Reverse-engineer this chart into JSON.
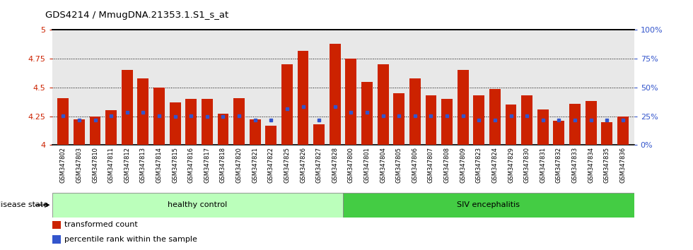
{
  "title": "GDS4214 / MmugDNA.21353.1.S1_s_at",
  "samples": [
    "GSM347802",
    "GSM347803",
    "GSM347810",
    "GSM347811",
    "GSM347812",
    "GSM347813",
    "GSM347814",
    "GSM347815",
    "GSM347816",
    "GSM347817",
    "GSM347818",
    "GSM347820",
    "GSM347821",
    "GSM347822",
    "GSM347825",
    "GSM347826",
    "GSM347827",
    "GSM347828",
    "GSM347800",
    "GSM347801",
    "GSM347804",
    "GSM347805",
    "GSM347806",
    "GSM347807",
    "GSM347808",
    "GSM347809",
    "GSM347823",
    "GSM347824",
    "GSM347829",
    "GSM347830",
    "GSM347831",
    "GSM347832",
    "GSM347833",
    "GSM347834",
    "GSM347835",
    "GSM347836"
  ],
  "transformed_count": [
    4.41,
    4.22,
    4.25,
    4.3,
    4.65,
    4.58,
    4.5,
    4.37,
    4.4,
    4.4,
    4.27,
    4.41,
    4.22,
    4.17,
    4.7,
    4.82,
    4.18,
    4.88,
    4.75,
    4.55,
    4.7,
    4.45,
    4.58,
    4.43,
    4.4,
    4.65,
    4.43,
    4.49,
    4.35,
    4.43,
    4.31,
    4.21,
    4.36,
    4.38,
    4.2,
    4.25
  ],
  "percentile_rank": [
    4.255,
    4.215,
    4.215,
    4.255,
    4.285,
    4.285,
    4.255,
    4.245,
    4.255,
    4.245,
    4.245,
    4.255,
    4.215,
    4.215,
    4.315,
    4.335,
    4.215,
    4.335,
    4.285,
    4.285,
    4.255,
    4.255,
    4.255,
    4.255,
    4.255,
    4.255,
    4.215,
    4.215,
    4.255,
    4.255,
    4.215,
    4.215,
    4.215,
    4.215,
    4.215,
    4.215
  ],
  "healthy_control_count": 18,
  "ylim": [
    4.0,
    5.0
  ],
  "yticks_left": [
    4.0,
    4.25,
    4.5,
    4.75,
    5.0
  ],
  "yticks_left_labels": [
    "4",
    "4.25",
    "4.5",
    "4.75",
    "5"
  ],
  "yticks_right": [
    0,
    25,
    50,
    75,
    100
  ],
  "yticks_right_labels": [
    "0%",
    "25%",
    "50%",
    "75%",
    "100%"
  ],
  "bar_color": "#cc2200",
  "percentile_color": "#3355cc",
  "healthy_color": "#bbffbb",
  "siv_color": "#44cc44",
  "grid_color": "#000000",
  "healthy_label": "healthy control",
  "siv_label": "SIV encephalitis",
  "disease_state_label": "disease state",
  "legend_bar_label": "transformed count",
  "legend_pct_label": "percentile rank within the sample"
}
